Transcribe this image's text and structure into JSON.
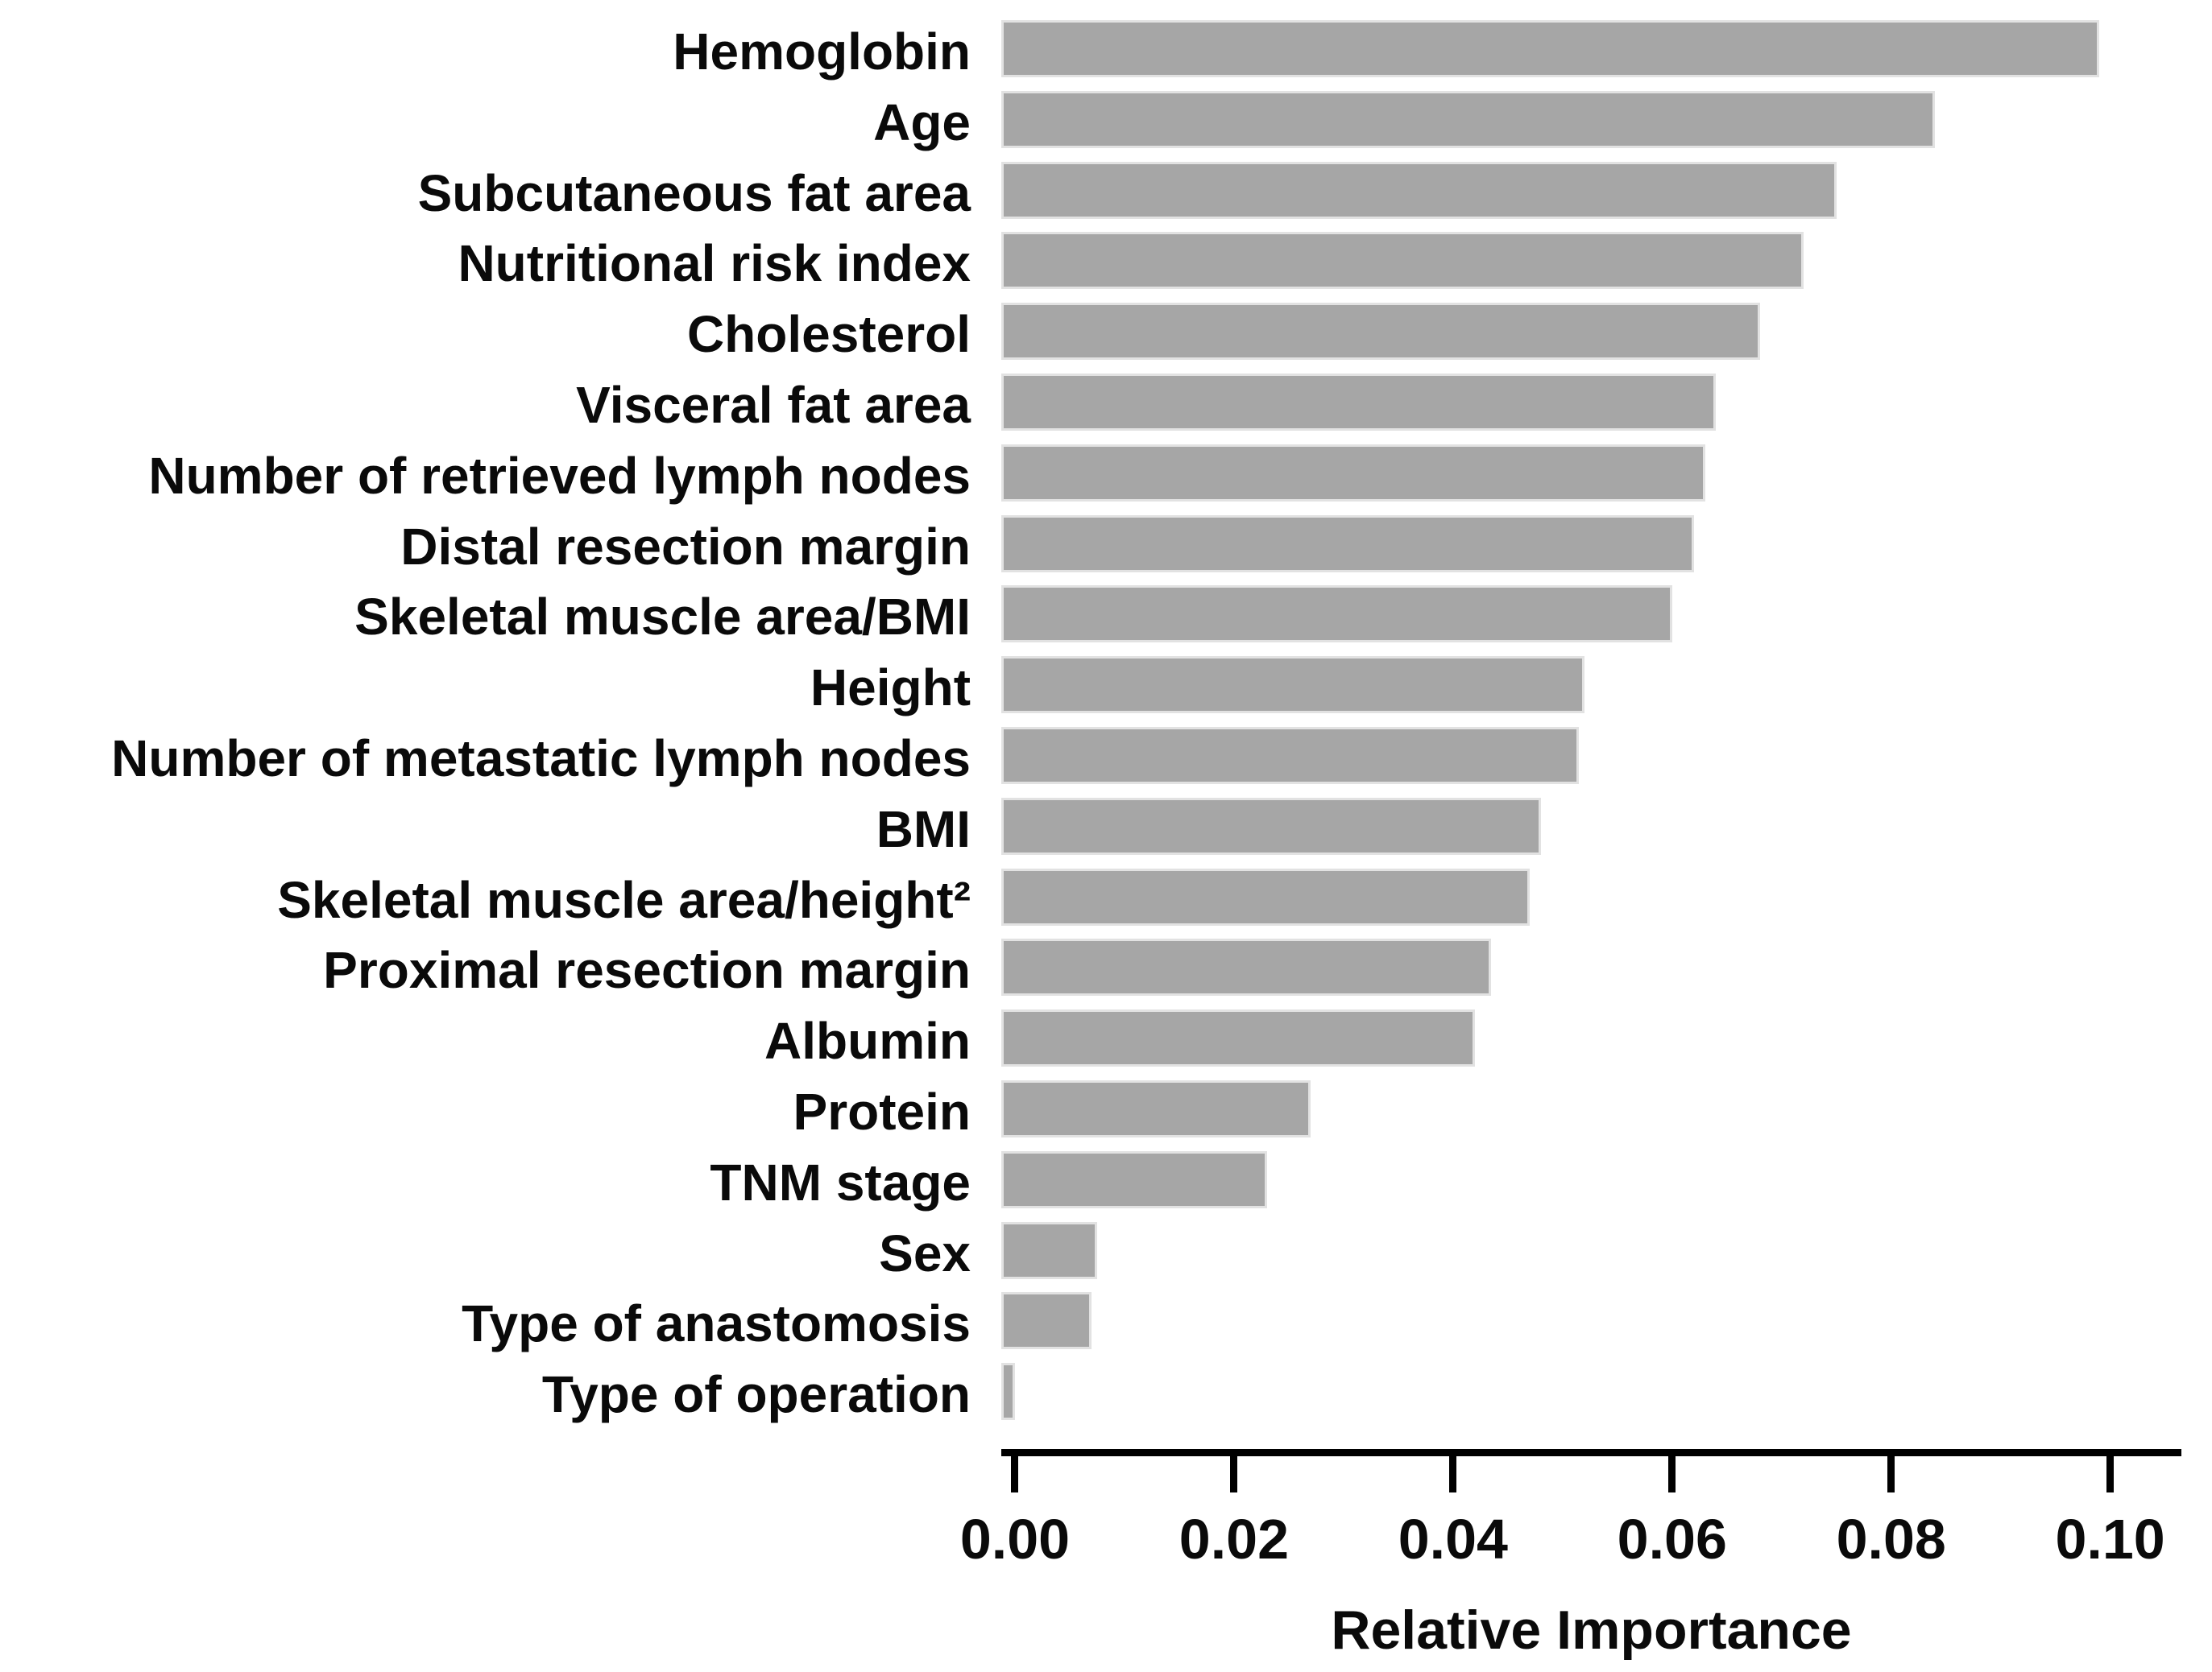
{
  "figure": {
    "background_color": "#ffffff",
    "bar_fill_color": "#a6a6a6",
    "bar_edge_color": "#e2e2e2",
    "axis_color": "#000000",
    "text_color": "#0a0a0a"
  },
  "chart_data": {
    "type": "bar",
    "orientation": "horizontal",
    "title": "",
    "xlabel": "Relative Importance",
    "ylabel": "",
    "categories": [
      "Hemoglobin",
      "Age",
      "Subcutaneous fat area",
      "Nutritional risk index",
      "Cholesterol",
      "Visceral fat area",
      "Number of retrieved lymph nodes",
      "Distal resection margin",
      "Skeletal muscle area/BMI",
      "Height",
      "Number of metastatic lymph nodes",
      "BMI",
      "Skeletal muscle area/height²",
      "Proximal resection margin",
      "Albumin",
      "Protein",
      "TNM stage",
      "Sex",
      "Type of anastomosis",
      "Type of operation"
    ],
    "values": [
      0.099,
      0.084,
      0.075,
      0.072,
      0.068,
      0.064,
      0.063,
      0.062,
      0.06,
      0.052,
      0.0515,
      0.048,
      0.047,
      0.0435,
      0.042,
      0.027,
      0.023,
      0.0075,
      0.007,
      0.0
    ],
    "x_ticks": [
      0.0,
      0.02,
      0.04,
      0.06,
      0.08,
      0.1
    ],
    "x_tick_labels": [
      "0.00",
      "0.02",
      "0.04",
      "0.06",
      "0.08",
      "0.10"
    ],
    "xlim": [
      -0.00125,
      0.1065
    ],
    "grid": false,
    "legend": false
  }
}
